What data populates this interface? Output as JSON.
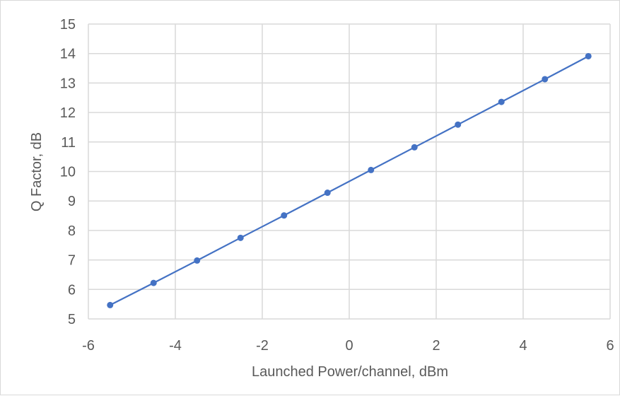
{
  "chart_data": {
    "type": "scatter",
    "title": "",
    "xlabel": "Launched Power/channel, dBm",
    "ylabel": "Q Factor, dB",
    "xlim": [
      -6,
      6
    ],
    "ylim": [
      5,
      15
    ],
    "xticks": [
      "-6",
      "-4",
      "-2",
      "0",
      "2",
      "4",
      "6"
    ],
    "yticks": [
      "5",
      "6",
      "7",
      "8",
      "9",
      "10",
      "11",
      "12",
      "13",
      "14",
      "15"
    ],
    "grid": true,
    "legend": "none",
    "series_color": "#4472c4",
    "series": [
      {
        "x": [
          -5.5,
          -4.5,
          -3.5,
          -2.5,
          -1.5,
          -0.5,
          0.5,
          1.5,
          2.5,
          3.5,
          4.5,
          5.5
        ],
        "y": [
          5.47,
          6.22,
          6.98,
          7.75,
          8.51,
          9.28,
          10.05,
          10.82,
          11.59,
          12.36,
          13.13,
          13.91
        ]
      }
    ]
  }
}
